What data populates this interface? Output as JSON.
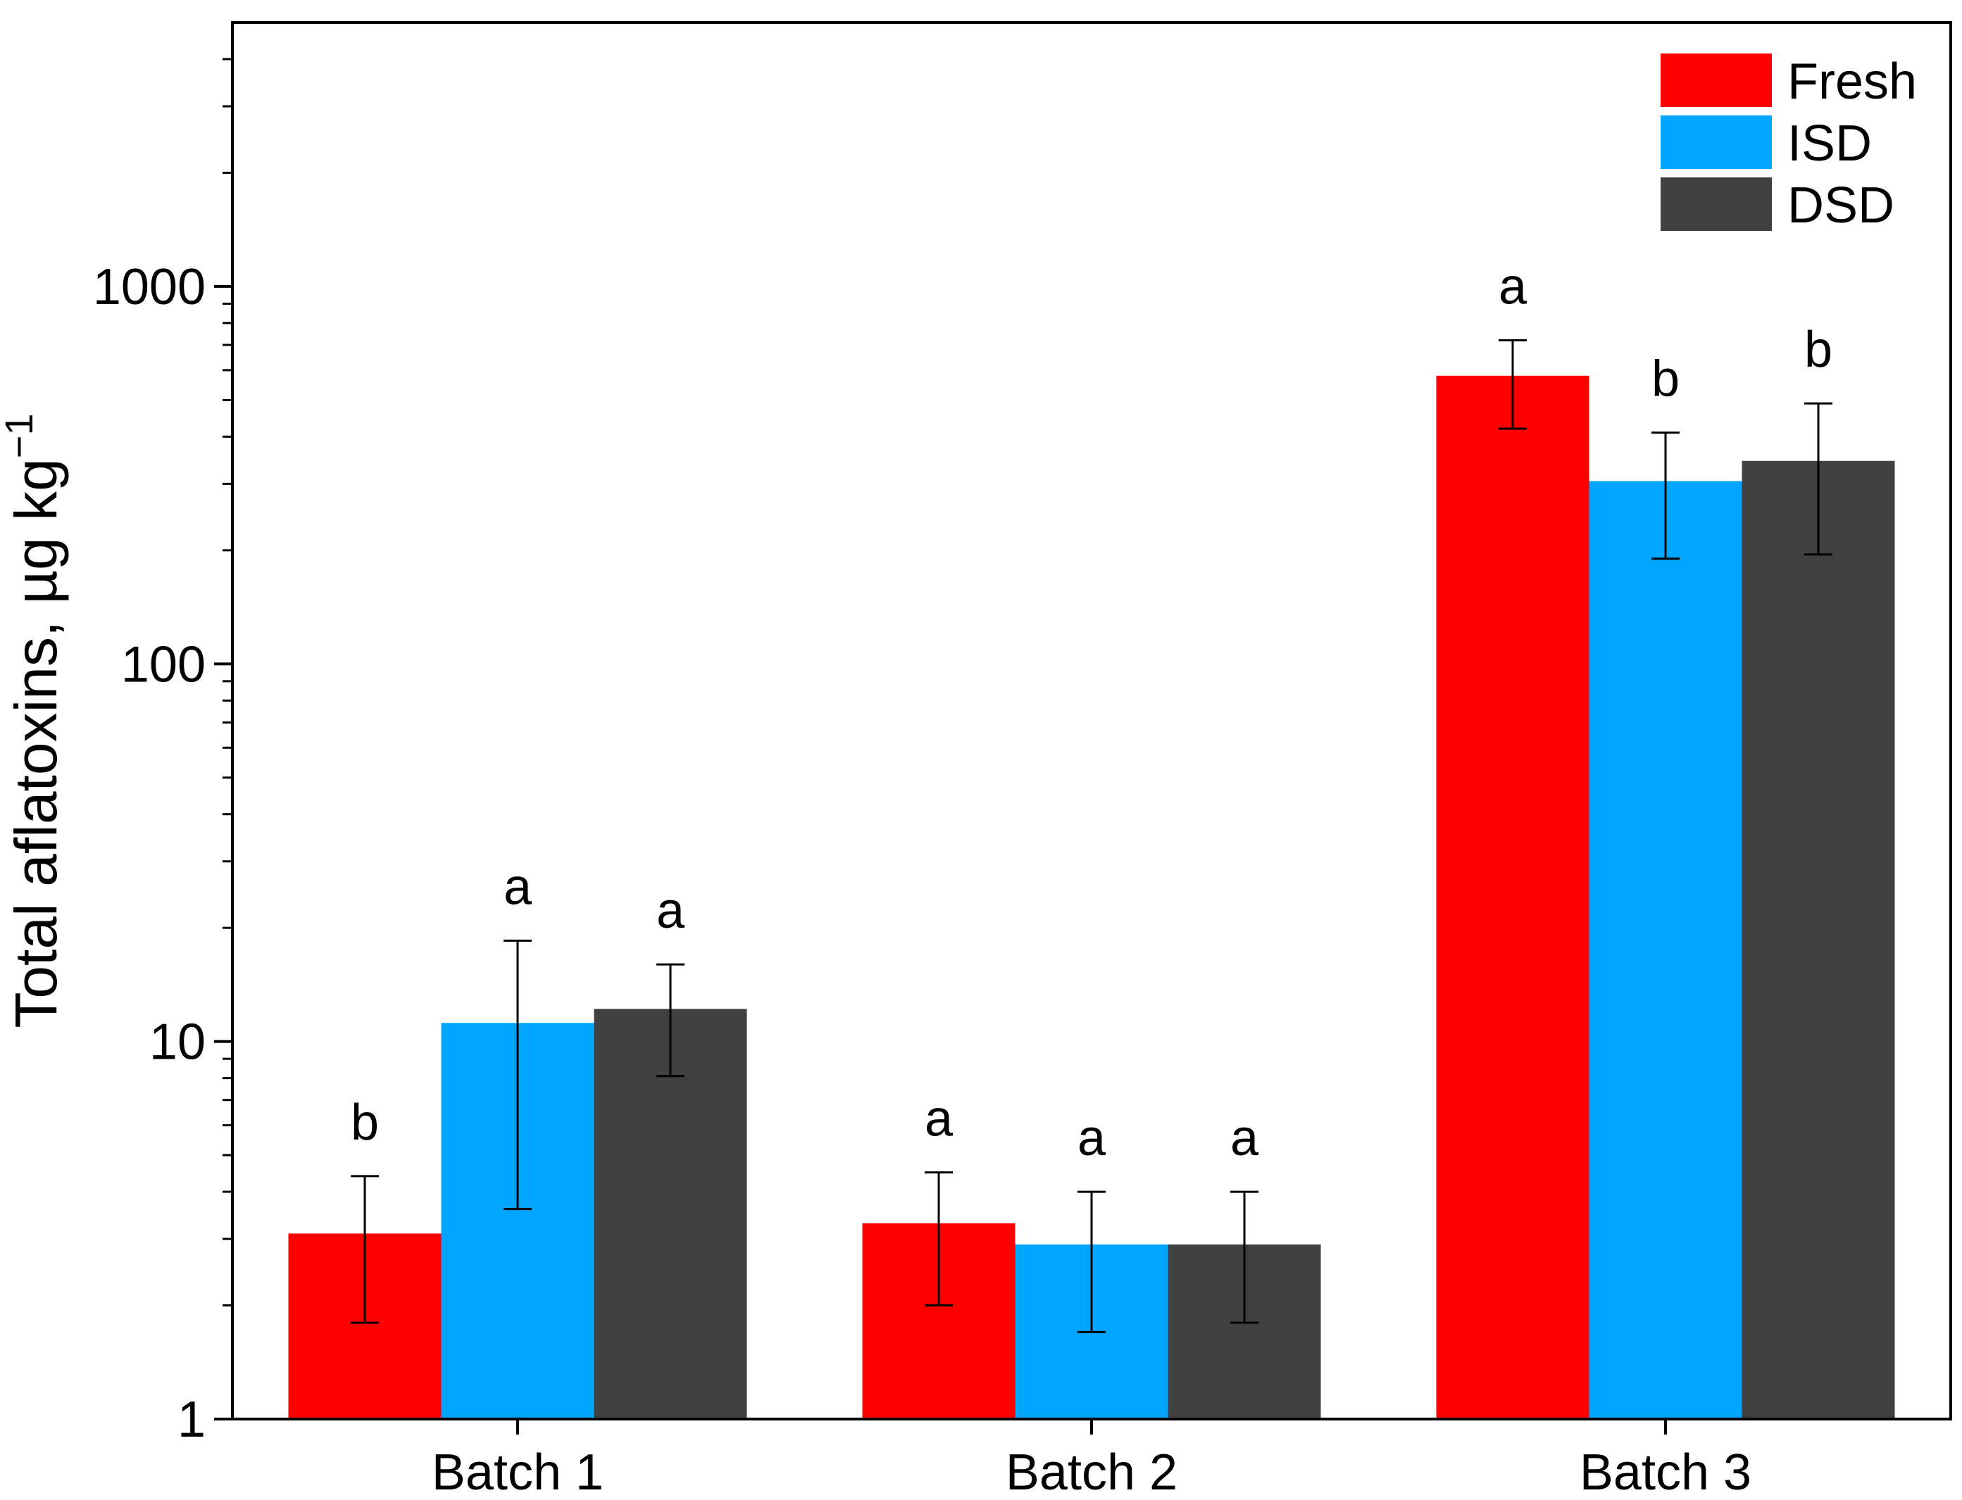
{
  "chart_data": {
    "type": "bar",
    "title": "",
    "xlabel": "",
    "ylabel": "Total aflatoxins, µg kg",
    "ylabel_superscript": "−1",
    "yscale": "log",
    "ylim": [
      1,
      5000
    ],
    "yticks": [
      1,
      10,
      100,
      1000
    ],
    "ytick_labels": [
      "1",
      "10",
      "100",
      "1000"
    ],
    "grid": false,
    "legend_position": "top-right",
    "categories": [
      "Batch 1",
      "Batch 2",
      "Batch 3"
    ],
    "series": [
      {
        "name": "Fresh",
        "color": "#ff0000",
        "values": [
          3.1,
          3.3,
          580
        ],
        "error_low": [
          1.8,
          2.0,
          420
        ],
        "error_high": [
          4.4,
          4.5,
          720
        ],
        "significance": [
          "b",
          "a",
          "a"
        ]
      },
      {
        "name": "ISD",
        "color": "#00a5ff",
        "values": [
          11.2,
          2.9,
          305
        ],
        "error_low": [
          3.6,
          1.7,
          190
        ],
        "error_high": [
          18.5,
          4.0,
          410
        ],
        "significance": [
          "a",
          "a",
          "b"
        ]
      },
      {
        "name": "DSD",
        "color": "#404040",
        "values": [
          12.2,
          2.9,
          345
        ],
        "error_low": [
          8.1,
          1.8,
          195
        ],
        "error_high": [
          16.0,
          4.0,
          490
        ],
        "significance": [
          "a",
          "a",
          "b"
        ]
      }
    ]
  }
}
